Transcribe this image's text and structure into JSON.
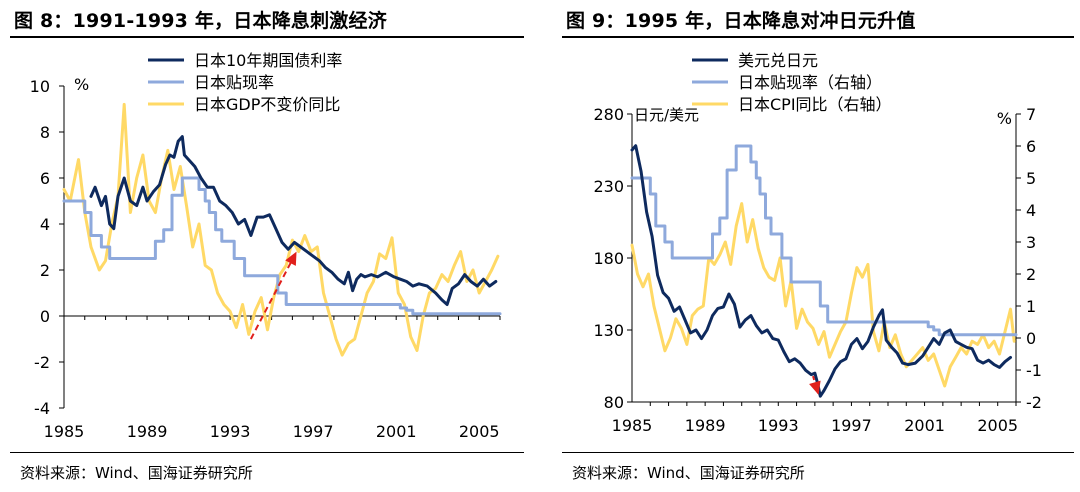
{
  "charts": [
    {
      "title": "图 8：1991-1993 年，日本降息刺激经济",
      "source": "资料来源：Wind、国海证券研究所",
      "unit_label": "%",
      "colors": {
        "dark_navy": "#0e2a5e",
        "light_blue": "#8ea9dc",
        "yellow": "#ffd966",
        "arrow": "#e0201b"
      },
      "chart_data": {
        "type": "line",
        "xlim": [
          1985,
          2006
        ],
        "ylim": [
          -4,
          10
        ],
        "x_ticks": [
          1985,
          1989,
          1993,
          1997,
          2001,
          2005
        ],
        "y_ticks": [
          -4,
          -2,
          0,
          2,
          4,
          6,
          8,
          10
        ],
        "y_tick_labels": [
          "-4",
          "-2",
          "0",
          "2",
          "4",
          "6",
          "8",
          "10"
        ],
        "series": [
          {
            "name": "日本10年期国债利率",
            "color": "#0e2a5e",
            "width": 3,
            "x": [
              1986.3,
              1986.5,
              1986.8,
              1987.0,
              1987.2,
              1987.4,
              1987.6,
              1987.9,
              1988.2,
              1988.5,
              1988.8,
              1989.0,
              1989.3,
              1989.6,
              1989.9,
              1990.1,
              1990.3,
              1990.5,
              1990.7,
              1990.8,
              1991.0,
              1991.3,
              1991.6,
              1991.9,
              1992.2,
              1992.5,
              1992.8,
              1993.1,
              1993.4,
              1993.7,
              1994.0,
              1994.3,
              1994.6,
              1994.9,
              1995.2,
              1995.5,
              1995.8,
              1996.1,
              1996.4,
              1996.7,
              1997.0,
              1997.3,
              1997.6,
              1997.9,
              1998.2,
              1998.5,
              1998.7,
              1998.9,
              1999.1,
              1999.3,
              1999.5,
              1999.8,
              2000.1,
              2000.5,
              2000.9,
              2001.2,
              2001.5,
              2001.8,
              2002.1,
              2002.5,
              2002.9,
              2003.2,
              2003.45,
              2003.7,
              2004.0,
              2004.3,
              2004.6,
              2004.9,
              2005.2,
              2005.5,
              2005.8
            ],
            "y": [
              5.2,
              5.6,
              4.8,
              5.2,
              4.0,
              3.8,
              5.2,
              6.0,
              5.0,
              4.8,
              5.6,
              5.0,
              5.4,
              5.7,
              6.6,
              7.0,
              6.9,
              7.6,
              7.8,
              7.0,
              6.8,
              6.5,
              6.0,
              5.6,
              5.6,
              5.0,
              4.8,
              4.5,
              4.0,
              4.2,
              3.5,
              4.3,
              4.3,
              4.4,
              3.8,
              3.2,
              2.9,
              3.2,
              3.0,
              2.8,
              2.6,
              2.4,
              2.1,
              1.9,
              1.6,
              1.4,
              1.9,
              1.1,
              1.6,
              1.8,
              1.7,
              1.8,
              1.7,
              1.9,
              1.7,
              1.6,
              1.5,
              1.3,
              1.4,
              1.3,
              1.0,
              0.7,
              0.5,
              1.2,
              1.4,
              1.8,
              1.5,
              1.3,
              1.6,
              1.3,
              1.5
            ]
          },
          {
            "name": "日本贴现率",
            "color": "#8ea9dc",
            "width": 3,
            "x": [
              1985.0,
              1986.0,
              1986.0,
              1986.3,
              1986.3,
              1986.8,
              1986.8,
              1987.2,
              1987.2,
              1989.4,
              1989.4,
              1989.8,
              1989.8,
              1990.2,
              1990.2,
              1990.7,
              1990.7,
              1991.5,
              1991.5,
              1991.8,
              1991.8,
              1992.0,
              1992.0,
              1992.3,
              1992.3,
              1992.6,
              1992.6,
              1993.2,
              1993.2,
              1993.7,
              1993.7,
              1995.3,
              1995.3,
              1995.7,
              1995.7,
              2001.2,
              2001.2,
              2001.5,
              2001.5,
              2001.8,
              2001.8,
              2006.0
            ],
            "y": [
              5.0,
              5.0,
              4.5,
              4.5,
              3.5,
              3.5,
              3.0,
              3.0,
              2.5,
              2.5,
              3.25,
              3.25,
              3.75,
              3.75,
              5.25,
              5.25,
              6.0,
              6.0,
              5.5,
              5.5,
              5.0,
              5.0,
              4.5,
              4.5,
              3.75,
              3.75,
              3.25,
              3.25,
              2.5,
              2.5,
              1.75,
              1.75,
              1.0,
              1.0,
              0.5,
              0.5,
              0.35,
              0.35,
              0.25,
              0.25,
              0.1,
              0.1
            ]
          },
          {
            "name": "日本GDP不变价同比",
            "color": "#ffd966",
            "width": 3,
            "x": [
              1985.0,
              1985.3,
              1985.7,
              1986.0,
              1986.3,
              1986.7,
              1987.0,
              1987.3,
              1987.6,
              1987.9,
              1988.2,
              1988.5,
              1988.8,
              1989.1,
              1989.4,
              1989.7,
              1990.0,
              1990.3,
              1990.6,
              1990.9,
              1991.2,
              1991.5,
              1991.8,
              1992.1,
              1992.4,
              1992.7,
              1993.0,
              1993.3,
              1993.6,
              1993.9,
              1994.2,
              1994.5,
              1994.8,
              1995.1,
              1995.4,
              1995.7,
              1996.0,
              1996.3,
              1996.6,
              1996.9,
              1997.2,
              1997.5,
              1997.8,
              1998.1,
              1998.4,
              1998.7,
              1999.0,
              1999.3,
              1999.6,
              1999.9,
              2000.2,
              2000.5,
              2000.8,
              2001.1,
              2001.4,
              2001.7,
              2002.0,
              2002.3,
              2002.6,
              2002.9,
              2003.2,
              2003.5,
              2003.8,
              2004.1,
              2004.4,
              2004.7,
              2005.0,
              2005.3,
              2005.6,
              2005.9
            ],
            "y": [
              5.5,
              5.0,
              6.8,
              4.5,
              3.0,
              2.0,
              2.4,
              4.0,
              5.2,
              9.2,
              4.5,
              6.0,
              7.0,
              5.0,
              4.5,
              6.0,
              7.2,
              5.5,
              6.5,
              4.8,
              3.0,
              4.0,
              2.2,
              2.0,
              1.0,
              0.5,
              0.2,
              -0.5,
              0.5,
              -0.8,
              0.2,
              0.8,
              -0.6,
              0.8,
              1.8,
              2.2,
              3.3,
              2.8,
              3.5,
              2.8,
              3.0,
              1.0,
              0.0,
              -1.0,
              -1.7,
              -1.2,
              -1.0,
              0.0,
              1.0,
              1.5,
              2.7,
              2.5,
              3.4,
              1.0,
              0.5,
              -0.9,
              -1.5,
              0.0,
              1.0,
              1.2,
              1.8,
              1.5,
              2.2,
              2.8,
              1.5,
              2.0,
              1.0,
              1.5,
              2.0,
              2.6
            ]
          }
        ],
        "legend": [
          "日本10年期国债利率",
          "日本贴现率",
          "日本GDP不变价同比"
        ],
        "legend_position": "top-center",
        "annotation": {
          "type": "dashed-arrow",
          "from": [
            1994.0,
            -1.0
          ],
          "to": [
            1996.2,
            2.8
          ],
          "color": "#e0201b"
        }
      }
    },
    {
      "title": "图 9：1995 年，日本降息对冲日元升值",
      "source": "资料来源：Wind、国海证券研究所",
      "left_axis_label": "日元/美元",
      "right_axis_label": "%",
      "colors": {
        "dark_navy": "#0e2a5e",
        "light_blue": "#8ea9dc",
        "yellow": "#ffd966",
        "arrow": "#e0201b"
      },
      "chart_data": {
        "type": "line",
        "xlim": [
          1985,
          2006
        ],
        "ylim_left": [
          80,
          280
        ],
        "ylim_right": [
          -2,
          7
        ],
        "x_ticks": [
          1985,
          1989,
          1993,
          1997,
          2001,
          2005
        ],
        "y_ticks_left": [
          80,
          130,
          180,
          230,
          280
        ],
        "y_tick_labels_left": [
          "80",
          "130",
          "180",
          "230",
          "280"
        ],
        "y_ticks_right": [
          -2,
          -1,
          0,
          1,
          2,
          3,
          4,
          5,
          6,
          7
        ],
        "y_tick_labels_right": [
          "-2",
          "-1",
          "0",
          "1",
          "2",
          "3",
          "4",
          "5",
          "6",
          "7"
        ],
        "series": [
          {
            "name": "美元兑日元",
            "axis": "left",
            "color": "#0e2a5e",
            "width": 3,
            "x": [
              1985.0,
              1985.2,
              1985.5,
              1985.8,
              1986.1,
              1986.4,
              1986.7,
              1987.0,
              1987.3,
              1987.6,
              1987.9,
              1988.2,
              1988.5,
              1988.8,
              1989.1,
              1989.4,
              1989.7,
              1990.0,
              1990.3,
              1990.6,
              1990.9,
              1991.2,
              1991.5,
              1991.8,
              1992.1,
              1992.4,
              1992.7,
              1993.0,
              1993.3,
              1993.6,
              1993.9,
              1994.2,
              1994.5,
              1994.8,
              1995.0,
              1995.15,
              1995.3,
              1995.5,
              1995.8,
              1996.1,
              1996.4,
              1996.7,
              1997.0,
              1997.3,
              1997.6,
              1997.9,
              1998.2,
              1998.5,
              1998.7,
              1998.9,
              1999.2,
              1999.5,
              1999.8,
              2000.1,
              2000.5,
              2000.9,
              2001.2,
              2001.5,
              2001.8,
              2002.1,
              2002.4,
              2002.7,
              2003.0,
              2003.3,
              2003.6,
              2003.9,
              2004.2,
              2004.5,
              2004.8,
              2005.1,
              2005.4,
              2005.7
            ],
            "y": [
              255,
              258,
              240,
              212,
              195,
              168,
              156,
              152,
              143,
              146,
              137,
              128,
              130,
              124,
              130,
              140,
              145,
              146,
              155,
              148,
              132,
              137,
              140,
              133,
              128,
              130,
              124,
              123,
              115,
              108,
              110,
              107,
              102,
              99,
              100,
              93,
              84,
              88,
              95,
              103,
              108,
              110,
              120,
              124,
              117,
              122,
              132,
              140,
              144,
              123,
              118,
              114,
              107,
              106,
              107,
              112,
              118,
              124,
              120,
              128,
              130,
              122,
              120,
              118,
              117,
              109,
              107,
              109,
              106,
              104,
              108,
              111
            ]
          },
          {
            "name": "日本贴现率（右轴）",
            "axis": "right",
            "color": "#8ea9dc",
            "width": 3,
            "x": [
              1985.0,
              1986.0,
              1986.0,
              1986.3,
              1986.3,
              1986.8,
              1986.8,
              1987.2,
              1987.2,
              1989.4,
              1989.4,
              1989.8,
              1989.8,
              1990.2,
              1990.2,
              1990.7,
              1990.7,
              1991.5,
              1991.5,
              1991.8,
              1991.8,
              1992.0,
              1992.0,
              1992.3,
              1992.3,
              1992.6,
              1992.6,
              1993.2,
              1993.2,
              1993.7,
              1993.7,
              1995.3,
              1995.3,
              1995.7,
              1995.7,
              2001.2,
              2001.2,
              2001.5,
              2001.5,
              2001.8,
              2001.8,
              2006.0
            ],
            "y": [
              5.0,
              5.0,
              4.5,
              4.5,
              3.5,
              3.5,
              3.0,
              3.0,
              2.5,
              2.5,
              3.25,
              3.25,
              3.75,
              3.75,
              5.25,
              5.25,
              6.0,
              6.0,
              5.5,
              5.5,
              5.0,
              5.0,
              4.5,
              4.5,
              3.75,
              3.75,
              3.25,
              3.25,
              2.5,
              2.5,
              1.75,
              1.75,
              1.0,
              1.0,
              0.5,
              0.5,
              0.35,
              0.35,
              0.25,
              0.25,
              0.1,
              0.1
            ]
          },
          {
            "name": "日本CPI同比（右轴）",
            "axis": "right",
            "color": "#ffd966",
            "width": 3,
            "x": [
              1985.0,
              1985.3,
              1985.6,
              1985.9,
              1986.2,
              1986.5,
              1986.8,
              1987.1,
              1987.4,
              1987.7,
              1988.0,
              1988.3,
              1988.6,
              1988.9,
              1989.2,
              1989.5,
              1989.8,
              1990.1,
              1990.4,
              1990.7,
              1991.0,
              1991.3,
              1991.6,
              1991.9,
              1992.2,
              1992.5,
              1992.8,
              1993.1,
              1993.4,
              1993.7,
              1994.0,
              1994.3,
              1994.6,
              1994.9,
              1995.2,
              1995.5,
              1995.8,
              1996.1,
              1996.4,
              1996.7,
              1997.0,
              1997.3,
              1997.6,
              1997.9,
              1998.2,
              1998.5,
              1998.8,
              1999.1,
              1999.4,
              1999.7,
              2000.0,
              2000.3,
              2000.6,
              2000.9,
              2001.2,
              2001.5,
              2001.8,
              2002.1,
              2002.4,
              2002.7,
              2003.0,
              2003.3,
              2003.6,
              2003.9,
              2004.2,
              2004.5,
              2004.8,
              2005.1,
              2005.4,
              2005.7,
              2005.9
            ],
            "y": [
              2.9,
              2.0,
              1.6,
              2.0,
              1.0,
              0.3,
              -0.4,
              0.0,
              0.6,
              0.3,
              -0.2,
              0.7,
              0.9,
              1.0,
              2.5,
              2.3,
              2.6,
              3.0,
              2.3,
              3.5,
              4.2,
              3.0,
              3.7,
              2.8,
              2.2,
              1.9,
              1.8,
              2.5,
              1.0,
              1.8,
              0.3,
              0.9,
              0.5,
              0.3,
              -0.2,
              0.2,
              -0.6,
              -0.2,
              0.2,
              0.5,
              1.4,
              2.2,
              1.9,
              2.3,
              0.2,
              -0.4,
              0.5,
              -0.3,
              0.1,
              -0.5,
              -0.9,
              -0.7,
              -0.5,
              -0.3,
              -0.7,
              -0.5,
              -1.0,
              -1.5,
              -0.9,
              -0.6,
              -0.3,
              -0.5,
              -0.1,
              -0.2,
              0.1,
              -0.3,
              -0.1,
              -0.5,
              0.2,
              0.9,
              -0.1
            ]
          }
        ],
        "legend": [
          "美元兑日元",
          "日本贴现率（右轴）",
          "日本CPI同比（右轴）"
        ],
        "legend_position": "top-center",
        "annotation": {
          "type": "dashed-arrow",
          "axis": "left",
          "from": [
            1994.9,
            98
          ],
          "to": [
            1995.2,
            85
          ],
          "color": "#e0201b"
        }
      }
    }
  ]
}
